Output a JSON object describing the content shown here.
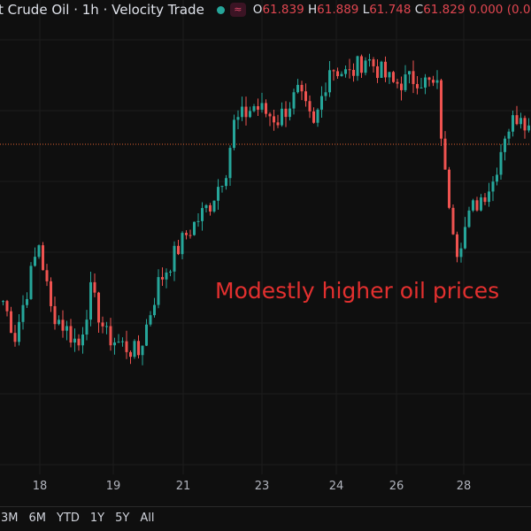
{
  "header": {
    "title": "t Crude Oil · 1h · Velocity Trade",
    "status_icon": "green-dot-icon",
    "wave_icon": "approx-icon",
    "ohlc": {
      "o_label": "O",
      "o": "61.839",
      "h_label": "H",
      "h": "61.889",
      "l_label": "L",
      "l": "61.748",
      "c_label": "C",
      "c": "61.829",
      "change": "0.000 (0.0"
    }
  },
  "annotation": "Modestly higher oil prices",
  "range_buttons": [
    "3M",
    "6M",
    "YTD",
    "1Y",
    "5Y",
    "All"
  ],
  "chart_data": {
    "type": "candlestick",
    "x_tick_labels": [
      "18",
      "19",
      "21",
      "23",
      "24",
      "26",
      "28"
    ],
    "last_price": 61.829,
    "approx_close_path": [
      [
        0,
        60.06
      ],
      [
        3,
        59.66
      ],
      [
        9,
        60.71
      ],
      [
        12,
        59.96
      ],
      [
        19,
        59.56
      ],
      [
        22,
        60.16
      ],
      [
        26,
        59.66
      ],
      [
        34,
        59.46
      ],
      [
        39,
        60.26
      ],
      [
        46,
        60.81
      ],
      [
        52,
        61.16
      ],
      [
        56,
        61.56
      ],
      [
        58,
        62.06
      ],
      [
        63,
        62.26
      ],
      [
        69,
        62.11
      ],
      [
        74,
        62.41
      ],
      [
        78,
        62.01
      ],
      [
        82,
        62.71
      ],
      [
        87,
        62.61
      ],
      [
        91,
        62.81
      ],
      [
        98,
        62.51
      ],
      [
        104,
        62.58
      ],
      [
        109,
        62.46
      ],
      [
        111,
        61.46
      ],
      [
        114,
        60.66
      ],
      [
        118,
        61.11
      ],
      [
        123,
        61.41
      ],
      [
        126,
        61.96
      ],
      [
        130,
        62.21
      ],
      [
        133,
        61.91
      ]
    ],
    "colors": {
      "up": "#26a69a",
      "down": "#ef5350",
      "last_price_line": "#e0602f"
    },
    "grid": true
  }
}
